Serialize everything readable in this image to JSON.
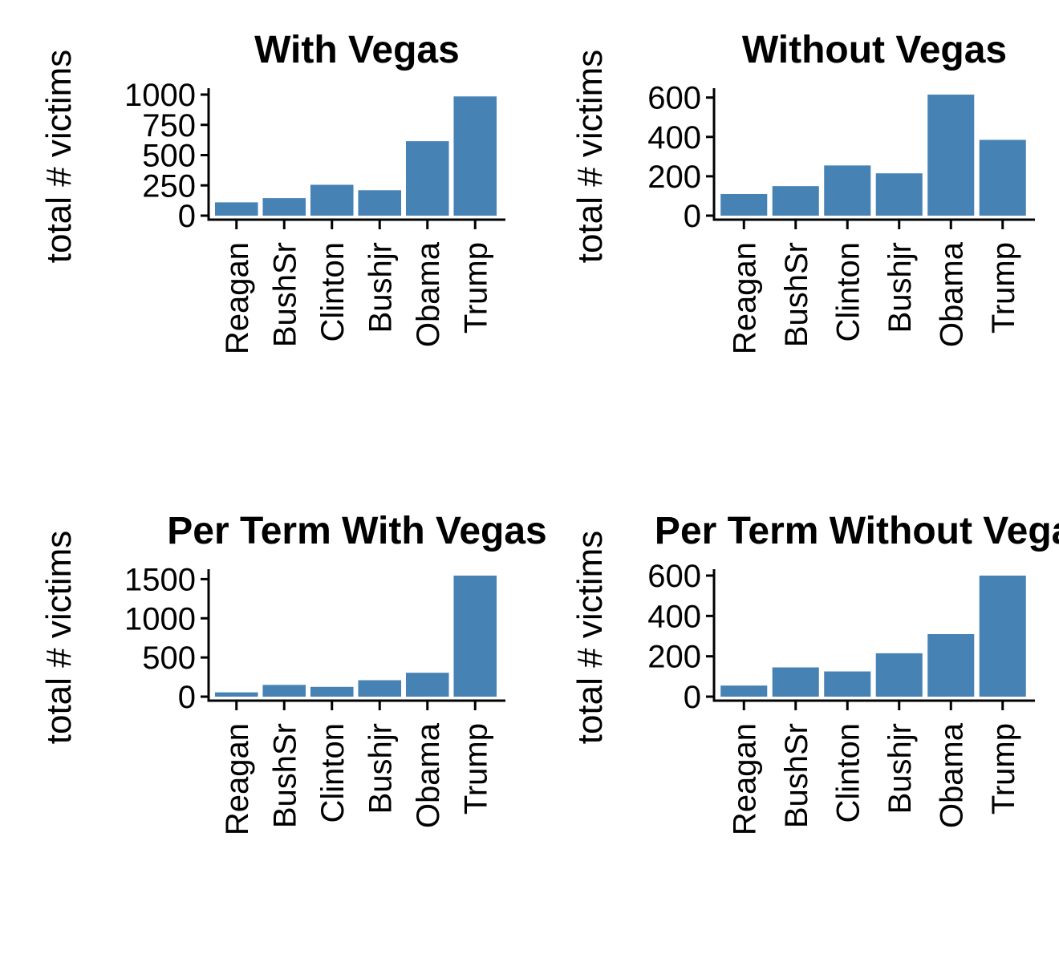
{
  "bar_color": "#4682B4",
  "chart_data": [
    {
      "type": "bar",
      "title": "With Vegas",
      "ylabel": "total # victims",
      "xlabel": "",
      "categories": [
        "Reagan",
        "BushSr",
        "Clinton",
        "Bushjr",
        "Obama",
        "Trump"
      ],
      "values": [
        110,
        145,
        255,
        210,
        615,
        985
      ],
      "ylim": [
        0,
        1000
      ],
      "yticks": [
        0,
        250,
        500,
        750,
        1000
      ],
      "grid": false
    },
    {
      "type": "bar",
      "title": "Without Vegas",
      "ylabel": "total # victims",
      "xlabel": "",
      "categories": [
        "Reagan",
        "BushSr",
        "Clinton",
        "Bushjr",
        "Obama",
        "Trump"
      ],
      "values": [
        110,
        150,
        255,
        215,
        615,
        385
      ],
      "ylim": [
        0,
        615
      ],
      "yticks": [
        0,
        200,
        400,
        600
      ],
      "grid": false
    },
    {
      "type": "bar",
      "title": "Per Term With Vegas",
      "ylabel": "total # victims",
      "xlabel": "",
      "categories": [
        "Reagan",
        "BushSr",
        "Clinton",
        "Bushjr",
        "Obama",
        "Trump"
      ],
      "values": [
        55,
        150,
        125,
        210,
        305,
        1545
      ],
      "ylim": [
        0,
        1545
      ],
      "yticks": [
        0,
        500,
        1000,
        1500
      ],
      "grid": false
    },
    {
      "type": "bar",
      "title": "Per Term Without Vegas",
      "ylabel": "total # victims",
      "xlabel": "",
      "categories": [
        "Reagan",
        "BushSr",
        "Clinton",
        "Bushjr",
        "Obama",
        "Trump"
      ],
      "values": [
        55,
        145,
        125,
        215,
        310,
        600
      ],
      "ylim": [
        0,
        600
      ],
      "yticks": [
        0,
        200,
        400,
        600
      ],
      "grid": false
    }
  ]
}
